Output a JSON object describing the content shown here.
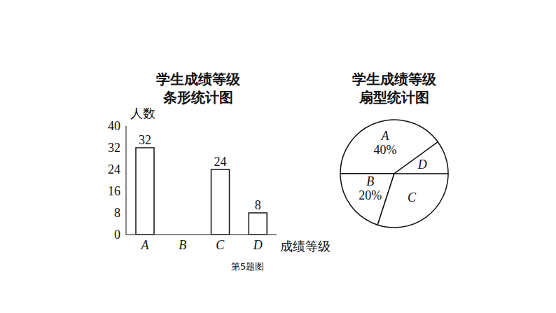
{
  "caption": "第5题图",
  "chart_data": [
    {
      "type": "bar",
      "title": "学生成绩等级\n条形统计图",
      "x_label": "成绩等级",
      "y_label": "人数",
      "categories": [
        "A",
        "B",
        "C",
        "D"
      ],
      "values": [
        32,
        null,
        24,
        8
      ],
      "color": "#ffffff",
      "ylim": [
        0,
        40
      ],
      "yticks": [
        0,
        8,
        16,
        24,
        32,
        40
      ],
      "grid": false,
      "data_labels": true
    },
    {
      "type": "pie",
      "title": "学生成绩等级\n扇型统计图",
      "categories": [
        "A",
        "B",
        "C",
        "D"
      ],
      "values": [
        40,
        20,
        30,
        10
      ],
      "value_labels": [
        "40%",
        "20%",
        null,
        null
      ],
      "color": "#ffffff",
      "data_labels": true
    }
  ]
}
